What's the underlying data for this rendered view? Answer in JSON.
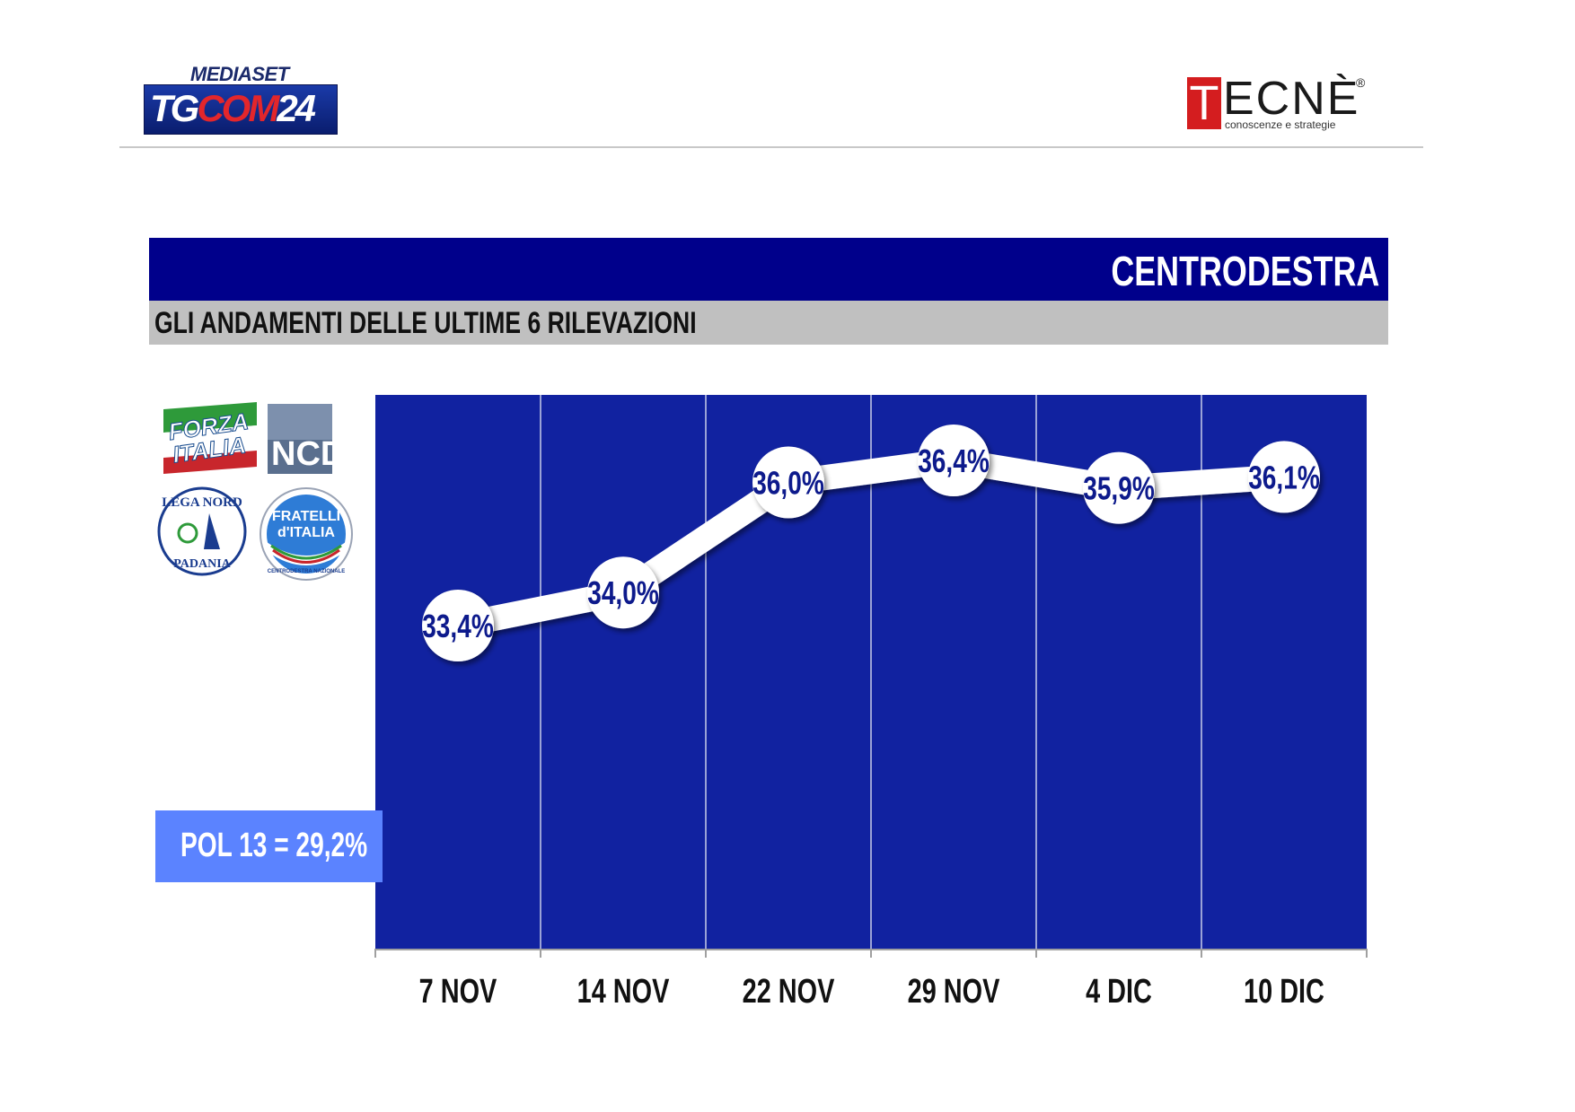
{
  "header": {
    "mediaset_label": "MEDIASET",
    "tgcom_prefix": "TG",
    "tgcom_red": "COM",
    "tgcom_num": "24",
    "tecne_first": "T",
    "tecne_rest": "ECNÈ",
    "tecne_reg": "®",
    "tecne_tagline": "conoscenze e strategie"
  },
  "banner": {
    "title": "CENTRODESTRA",
    "subtitle": "GLI ANDAMENTI DELLE ULTIME 6 RILEVAZIONI"
  },
  "parties": {
    "forza_italia": [
      "FORZA",
      "ITALIA"
    ],
    "ncd": "NCD",
    "lega": [
      "LEGA NORD",
      "PADANIA"
    ],
    "fdi": [
      "FRATELLI",
      "d'ITALIA",
      "CENTRODESTRA NAZIONALE"
    ]
  },
  "pol_box": "POL 13 = 29,2%",
  "colors": {
    "banner": "#00008b",
    "plot_bg": "#1122a0",
    "line": "#ffffff",
    "label_text": "#0d1a8c",
    "pol_box": "#5b83ff"
  },
  "chart_data": {
    "type": "line",
    "categories": [
      "7 NOV",
      "14 NOV",
      "22 NOV",
      "29 NOV",
      "4 DIC",
      "10 DIC"
    ],
    "values": [
      33.4,
      34.0,
      36.0,
      36.4,
      35.9,
      36.1
    ],
    "data_labels": [
      "33,4%",
      "34,0%",
      "36,0%",
      "36,4%",
      "35,9%",
      "36,1%"
    ],
    "unit": "%",
    "grid": "vertical",
    "legend": "none"
  }
}
